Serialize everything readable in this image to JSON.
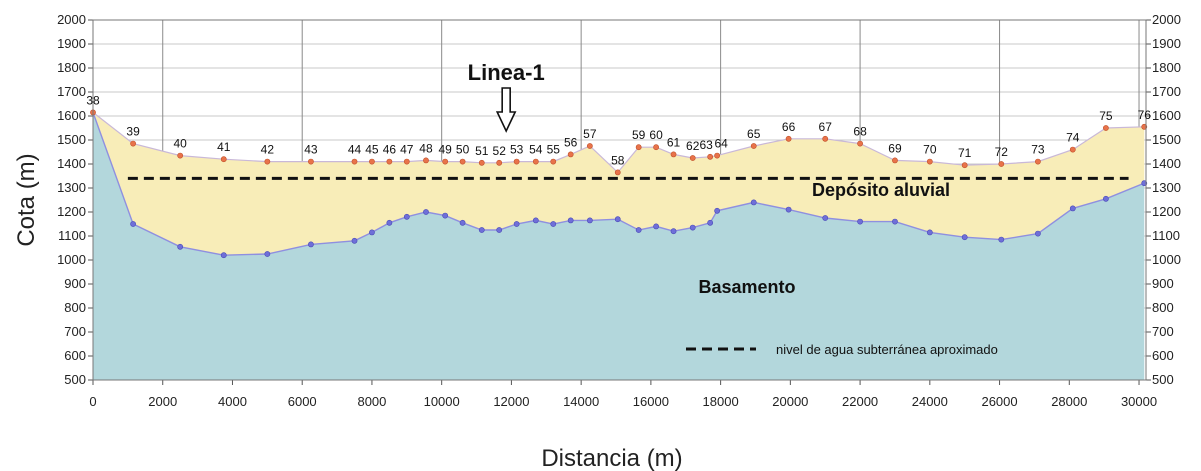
{
  "chart_data": {
    "type": "area",
    "xlabel": "Distancia (m)",
    "ylabel": "Cota (m)",
    "xlim": [
      0,
      30200
    ],
    "ylim": [
      500,
      2000
    ],
    "xticks": [
      0,
      2000,
      4000,
      6000,
      8000,
      10000,
      12000,
      14000,
      16000,
      18000,
      20000,
      22000,
      24000,
      26000,
      28000,
      30000
    ],
    "yticks": [
      500,
      600,
      700,
      800,
      900,
      1000,
      1100,
      1200,
      1300,
      1400,
      1500,
      1600,
      1700,
      1800,
      1900,
      2000
    ],
    "grid": true,
    "colors": {
      "deposito": "#f8edb8",
      "basamento": "#b3d7dc",
      "surface_line": "#c9b8d8",
      "basement_line": "#8f8fe0",
      "surface_marker": "#e8734a",
      "basement_marker": "#6f6fd8",
      "grid": "#c8c8c8"
    },
    "stations": [
      {
        "label": "38",
        "x": 0,
        "surface": 1615,
        "basement": 1615
      },
      {
        "label": "39",
        "x": 1150,
        "surface": 1485,
        "basement": 1150
      },
      {
        "label": "40",
        "x": 2500,
        "surface": 1435,
        "basement": 1055
      },
      {
        "label": "41",
        "x": 3750,
        "surface": 1420,
        "basement": 1020
      },
      {
        "label": "42",
        "x": 5000,
        "surface": 1410,
        "basement": 1025
      },
      {
        "label": "43",
        "x": 6250,
        "surface": 1410,
        "basement": 1065
      },
      {
        "label": "44",
        "x": 7500,
        "surface": 1410,
        "basement": 1080
      },
      {
        "label": "45",
        "x": 8000,
        "surface": 1410,
        "basement": 1115
      },
      {
        "label": "46",
        "x": 8500,
        "surface": 1410,
        "basement": 1155
      },
      {
        "label": "47",
        "x": 9000,
        "surface": 1410,
        "basement": 1180
      },
      {
        "label": "48",
        "x": 9550,
        "surface": 1415,
        "basement": 1200
      },
      {
        "label": "49",
        "x": 10100,
        "surface": 1410,
        "basement": 1185
      },
      {
        "label": "50",
        "x": 10600,
        "surface": 1410,
        "basement": 1155
      },
      {
        "label": "51",
        "x": 11150,
        "surface": 1405,
        "basement": 1125
      },
      {
        "label": "52",
        "x": 11650,
        "surface": 1405,
        "basement": 1125
      },
      {
        "label": "53",
        "x": 12150,
        "surface": 1410,
        "basement": 1150
      },
      {
        "label": "54",
        "x": 12700,
        "surface": 1410,
        "basement": 1165
      },
      {
        "label": "55",
        "x": 13200,
        "surface": 1410,
        "basement": 1150
      },
      {
        "label": "56",
        "x": 13700,
        "surface": 1440,
        "basement": 1165
      },
      {
        "label": "57",
        "x": 14250,
        "surface": 1475,
        "basement": 1165
      },
      {
        "label": "58",
        "x": 15050,
        "surface": 1365,
        "basement": 1170
      },
      {
        "label": "59",
        "x": 15650,
        "surface": 1470,
        "basement": 1125
      },
      {
        "label": "60",
        "x": 16150,
        "surface": 1470,
        "basement": 1140
      },
      {
        "label": "61",
        "x": 16650,
        "surface": 1440,
        "basement": 1120
      },
      {
        "label": "62",
        "x": 17200,
        "surface": 1425,
        "basement": 1135
      },
      {
        "label": "63",
        "x": 17700,
        "surface": 1430,
        "basement": 1155
      },
      {
        "label": "64",
        "x": 17900,
        "surface": 1435,
        "basement": 1205
      },
      {
        "label": "65",
        "x": 18950,
        "surface": 1475,
        "basement": 1240
      },
      {
        "label": "66",
        "x": 19950,
        "surface": 1505,
        "basement": 1210
      },
      {
        "label": "67",
        "x": 21000,
        "surface": 1505,
        "basement": 1175
      },
      {
        "label": "68",
        "x": 22000,
        "surface": 1485,
        "basement": 1160
      },
      {
        "label": "69",
        "x": 23000,
        "surface": 1415,
        "basement": 1160
      },
      {
        "label": "70",
        "x": 24000,
        "surface": 1410,
        "basement": 1115
      },
      {
        "label": "71",
        "x": 25000,
        "surface": 1395,
        "basement": 1095
      },
      {
        "label": "72",
        "x": 26050,
        "surface": 1400,
        "basement": 1085
      },
      {
        "label": "73",
        "x": 27100,
        "surface": 1410,
        "basement": 1110
      },
      {
        "label": "74",
        "x": 28100,
        "surface": 1460,
        "basement": 1215
      },
      {
        "label": "75",
        "x": 29050,
        "surface": 1550,
        "basement": 1255
      },
      {
        "label": "76",
        "x": 30150,
        "surface": 1555,
        "basement": 1320
      }
    ],
    "water_level": {
      "y": 1340,
      "x_start": 1000,
      "x_end": 29700
    },
    "annotations": {
      "line_label": "Linea-1",
      "line_x": 11850,
      "deposito_label": "Depósito aluvial",
      "basamento_label": "Basamento",
      "legend_text": "nivel de agua subterránea aproximado"
    }
  }
}
